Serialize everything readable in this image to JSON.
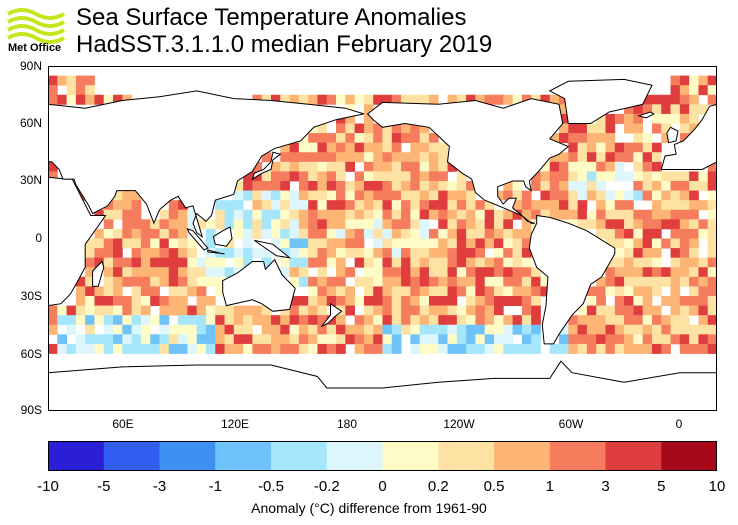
{
  "logo": {
    "text": "Met Office"
  },
  "title": {
    "line1": "Sea Surface Temperature Anomalies",
    "line2": "HadSST.3.1.1.0 median February 2019"
  },
  "map": {
    "lat_labels": [
      "90N",
      "60N",
      "30N",
      "0",
      "30S",
      "60S",
      "90S"
    ],
    "lon_labels": [
      "60E",
      "120E",
      "180",
      "120W",
      "60W",
      "0"
    ],
    "land_color": "#ffffff",
    "missing_color": "#ffffff"
  },
  "colorbar": {
    "ticks": [
      "-10",
      "-5",
      "-3",
      "-1",
      "-0.5",
      "-0.2",
      "0",
      "0.2",
      "0.5",
      "1",
      "3",
      "5",
      "10"
    ],
    "colors": [
      "#2a1fd6",
      "#2f5ef0",
      "#3d8ff0",
      "#6fc3f8",
      "#a6e6fb",
      "#dcf6fb",
      "#fefbc6",
      "#fde2a3",
      "#fcb574",
      "#f57d5e",
      "#e03e3e",
      "#a6091a"
    ]
  },
  "caption": "Anomaly (°C) difference from 1961-90"
}
